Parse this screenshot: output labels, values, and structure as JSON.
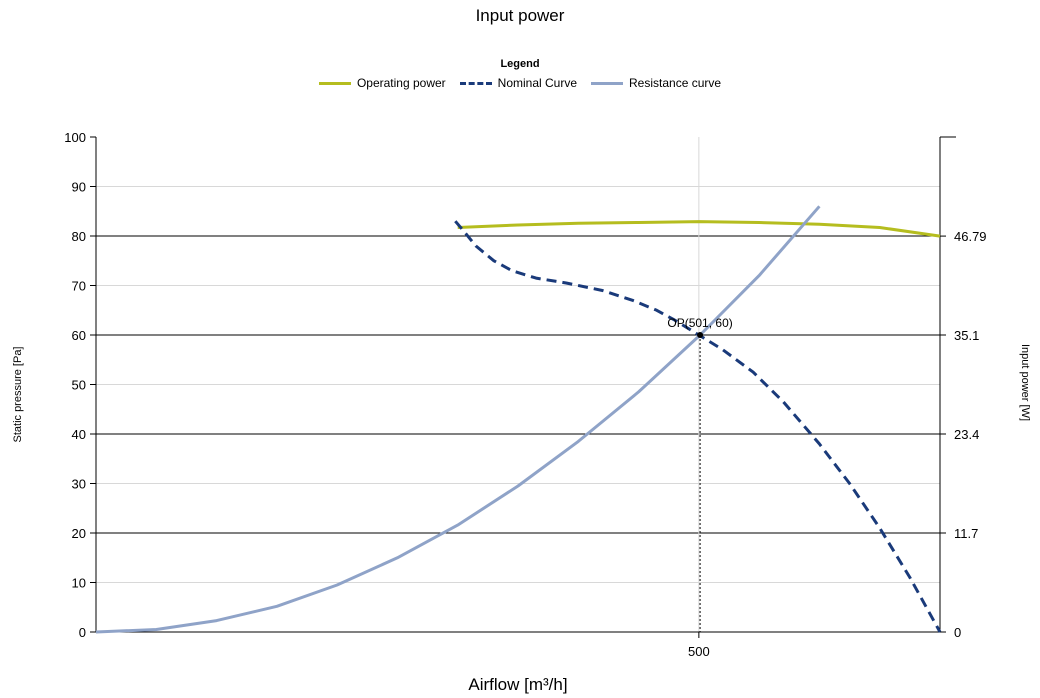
{
  "chart_data": {
    "type": "line",
    "title": "Input power",
    "legend_title": "Legend",
    "legend_position": "top-center",
    "xlabel": "Airflow [m³/h]",
    "ylabel": "Static pressure [Pa]",
    "y2label": "Input power [W]",
    "xlim": [
      0,
      700
    ],
    "ylim": [
      0,
      100
    ],
    "y2lim": [
      0,
      58.5
    ],
    "x_ticks": [
      500
    ],
    "y_ticks": [
      0,
      10,
      20,
      30,
      40,
      50,
      60,
      70,
      80,
      90,
      100
    ],
    "y2_ticks": [
      "0",
      "11.7",
      "23.4",
      "35.1",
      "46.79"
    ],
    "grid": true,
    "operating_point": {
      "label": "OP(501, 60)",
      "x": 501,
      "y": 60
    },
    "series": [
      {
        "name": "Operating power",
        "color": "#b5bd1f",
        "style": "solid",
        "axis": "right",
        "x": [
          300,
          350,
          400,
          450,
          500,
          550,
          600,
          650,
          700
        ],
        "y": [
          47.8,
          48.1,
          48.3,
          48.4,
          48.5,
          48.4,
          48.2,
          47.8,
          46.79
        ]
      },
      {
        "name": "Nominal Curve",
        "color": "#1a3a7a",
        "style": "dashed",
        "axis": "left",
        "x": [
          298,
          305,
          315,
          330,
          345,
          365,
          390,
          420,
          445,
          465,
          480,
          500,
          520,
          545,
          570,
          600,
          625,
          650,
          675,
          700
        ],
        "y": [
          83,
          81,
          78,
          75,
          73,
          71.5,
          70.5,
          69,
          67,
          65,
          63,
          60,
          57,
          52.5,
          46.5,
          38,
          30,
          21,
          11,
          0
        ]
      },
      {
        "name": "Resistance curve",
        "color": "#8fa3c8",
        "style": "solid",
        "axis": "left",
        "x": [
          0,
          50,
          100,
          150,
          200,
          250,
          300,
          350,
          400,
          450,
          501,
          550,
          600
        ],
        "y": [
          0,
          0.5,
          2.3,
          5.2,
          9.5,
          15,
          21.6,
          29.5,
          38.5,
          48.5,
          60,
          72,
          86
        ]
      }
    ]
  }
}
